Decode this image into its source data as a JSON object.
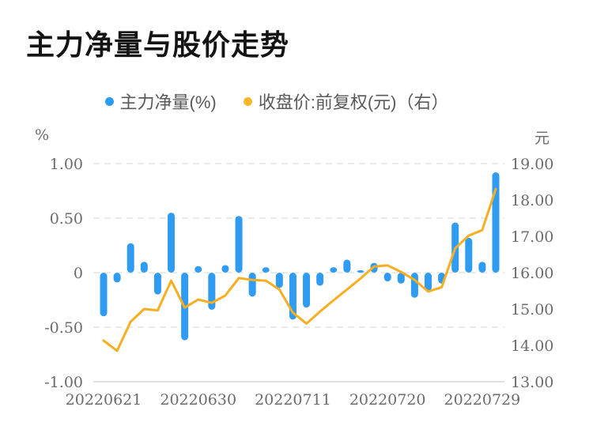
{
  "page": {
    "background": "#ffffff"
  },
  "header": {
    "title": "主力净量与股价走势"
  },
  "legend": {
    "items": [
      {
        "label": "主力净量(%)",
        "color": "#2b9af3"
      },
      {
        "label": "收盘价:前复权(元)（右）",
        "color": "#fbb62a"
      }
    ]
  },
  "axes": {
    "left_unit": "%",
    "right_unit": "元",
    "left_ticks": [
      "1.00",
      "0.50",
      "0",
      "-0.50",
      "-1.00"
    ],
    "right_ticks": [
      "19.00",
      "18.00",
      "17.00",
      "16.00",
      "15.00",
      "14.00",
      "13.00"
    ],
    "x_ticks": [
      "20220621",
      "20220630",
      "20220711",
      "20220720",
      "20220729"
    ]
  },
  "chart_data": {
    "type": "bar",
    "title": "主力净量与股价走势",
    "categories": [
      "20220621",
      "20220622",
      "20220623",
      "20220624",
      "20220627",
      "20220628",
      "20220629",
      "20220630",
      "20220701",
      "20220704",
      "20220705",
      "20220706",
      "20220707",
      "20220708",
      "20220711",
      "20220712",
      "20220713",
      "20220714",
      "20220715",
      "20220718",
      "20220719",
      "20220720",
      "20220721",
      "20220722",
      "20220725",
      "20220726",
      "20220727",
      "20220728",
      "20220729",
      "20220801"
    ],
    "series": [
      {
        "name": "主力净量(%)",
        "type": "bar",
        "axis": "left",
        "color": "#2f9cf2",
        "values": [
          -0.4,
          -0.09,
          0.27,
          0.1,
          -0.2,
          0.55,
          -0.62,
          0.06,
          -0.34,
          0.07,
          0.52,
          -0.22,
          0.05,
          -0.14,
          -0.43,
          -0.32,
          -0.12,
          0.05,
          0.12,
          0.02,
          0.09,
          -0.08,
          -0.1,
          -0.23,
          -0.17,
          -0.1,
          0.46,
          0.32,
          0.1,
          0.92
        ]
      },
      {
        "name": "收盘价:前复权(元)（右）",
        "type": "line",
        "axis": "right",
        "color": "#f7ae23",
        "values": [
          14.13,
          13.85,
          14.65,
          15.0,
          14.96,
          15.78,
          15.04,
          15.26,
          15.17,
          15.37,
          15.85,
          15.8,
          15.78,
          15.54,
          14.9,
          14.6,
          14.93,
          15.24,
          15.54,
          15.84,
          16.17,
          16.2,
          16.02,
          15.8,
          15.48,
          15.6,
          16.67,
          17.02,
          17.17,
          18.3
        ]
      }
    ],
    "left_axis": {
      "unit": "%",
      "min": -1.0,
      "max": 1.0,
      "tick_step": 0.5
    },
    "right_axis": {
      "unit": "元",
      "min": 13.0,
      "max": 19.0,
      "tick_step": 1.0
    },
    "x_tick_labels": [
      "20220621",
      "20220630",
      "20220711",
      "20220720",
      "20220729"
    ],
    "x_tick_indices": [
      0,
      7,
      14,
      21,
      28
    ],
    "grid": "horizontal-dashed",
    "legend_position": "top-center"
  }
}
